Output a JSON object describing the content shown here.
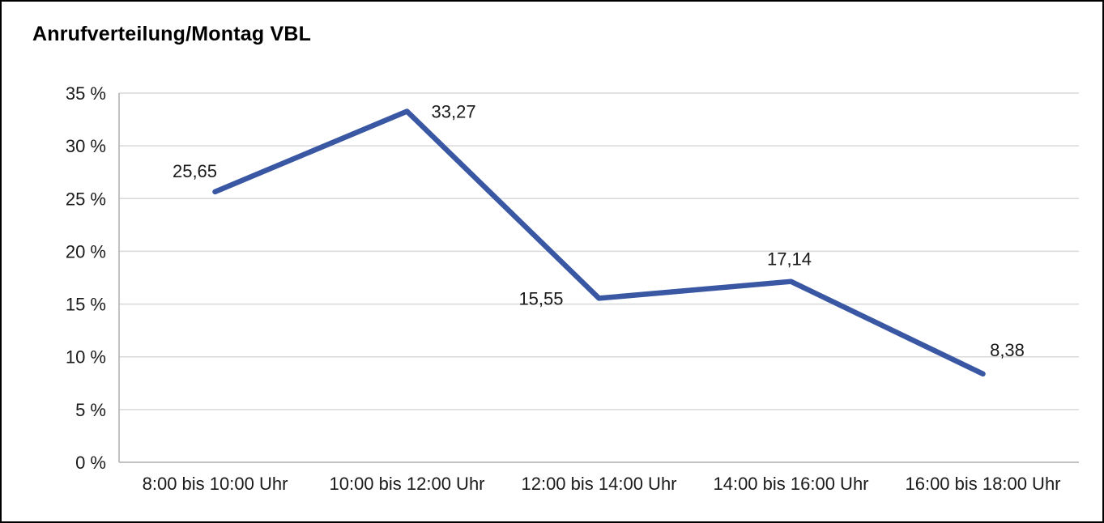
{
  "chart_data": {
    "type": "line",
    "title": "Anrufverteilung/Montag VBL",
    "categories": [
      "8:00 bis 10:00 Uhr",
      "10:00 bis 12:00 Uhr",
      "12:00 bis 14:00 Uhr",
      "14:00 bis 16:00 Uhr",
      "16:00 bis 18:00 Uhr"
    ],
    "values": [
      25.65,
      33.27,
      15.55,
      17.14,
      8.38
    ],
    "data_labels": [
      "25,65",
      "33,27",
      "15,55",
      "17,14",
      "8,38"
    ],
    "xlabel": "",
    "ylabel": "",
    "ylim": [
      0,
      35
    ],
    "ytick_step": 5,
    "ytick_labels": [
      "0 %",
      "5 %",
      "10 %",
      "15 %",
      "20 %",
      "25 %",
      "30 %",
      "35 %"
    ],
    "grid": true,
    "legend": "none"
  },
  "colors": {
    "line": "#3A57A3",
    "grid": "#D9D9D9",
    "axis": "#ADADAD",
    "text": "#1A1A1A",
    "title": "#000000",
    "background": "#FFFFFF",
    "border": "#000000"
  }
}
